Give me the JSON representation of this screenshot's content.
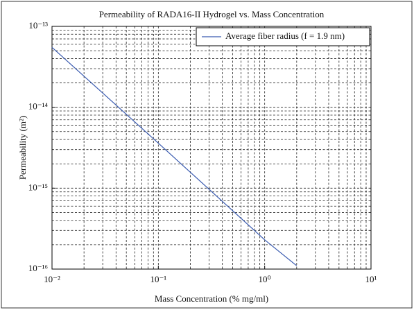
{
  "chart_data": {
    "type": "line",
    "title": "Permeability of RADA16-II Hydrogel vs. Mass Concentration",
    "xlabel": "Mass Concentration (% mg/ml)",
    "ylabel": "Permeability (m²)",
    "x": [
      0.01,
      0.1,
      1,
      2
    ],
    "series": [
      {
        "name": "Average fiber radius (f = 1.9 nm)",
        "color": "#3a5bb0",
        "values": [
          5.5e-14,
          3.6e-15,
          2.3e-16,
          1.1e-16
        ]
      }
    ],
    "xscale": "log",
    "yscale": "log",
    "xlim": [
      0.01,
      10
    ],
    "ylim": [
      1e-16,
      1e-13
    ],
    "xticks": [
      {
        "value": 0.01,
        "label": "10⁻²"
      },
      {
        "value": 0.1,
        "label": "10⁻¹"
      },
      {
        "value": 1,
        "label": "10⁰"
      },
      {
        "value": 10,
        "label": "10¹"
      }
    ],
    "yticks": [
      {
        "value": 1e-16,
        "label": "10⁻¹⁶"
      },
      {
        "value": 1e-15,
        "label": "10⁻¹⁵"
      },
      {
        "value": 1e-14,
        "label": "10⁻¹⁴"
      },
      {
        "value": 1e-13,
        "label": "10⁻¹³"
      }
    ],
    "grid": true,
    "minor_grid": true,
    "legend": "upper right"
  }
}
